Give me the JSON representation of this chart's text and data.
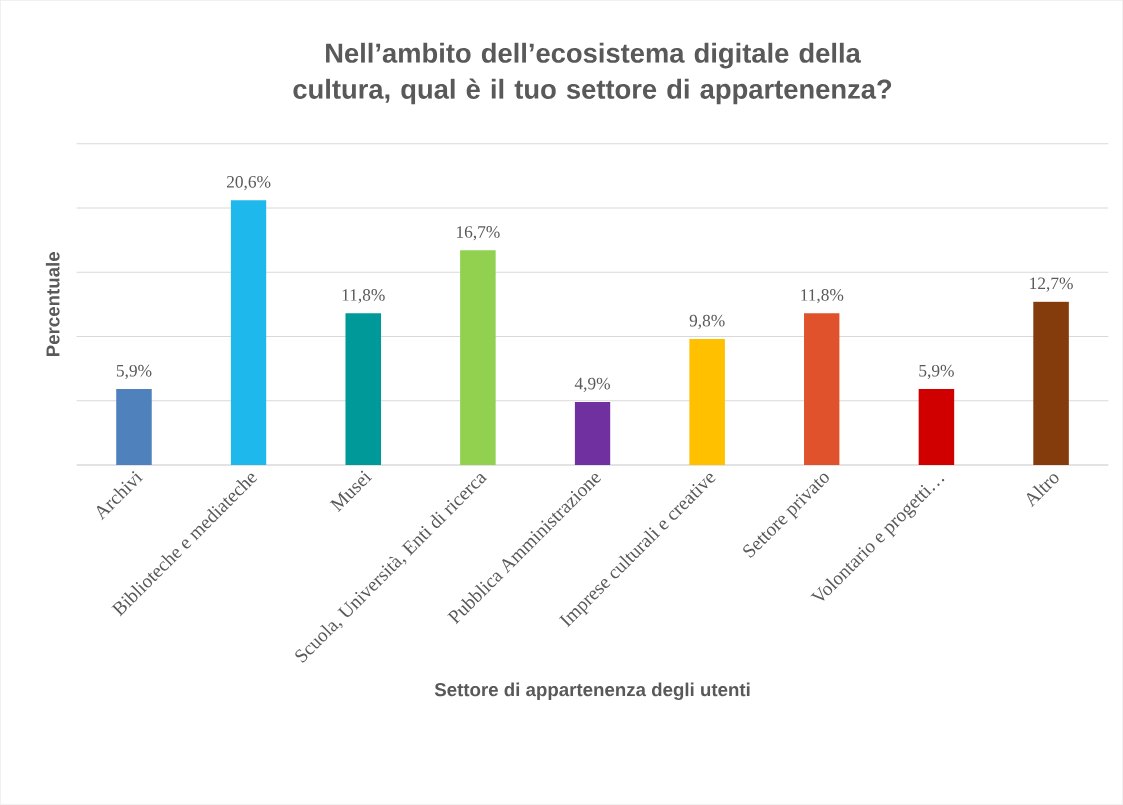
{
  "chart_data": {
    "type": "bar",
    "title": "Nell’ambito dell’ecosistema digitale della cultura, qual è il tuo settore di appartenenza?",
    "xlabel": "Settore di appartenenza degli utenti",
    "ylabel": "Percentuale",
    "categories": [
      "Archivi",
      "Biblioteche e mediateche",
      "Musei",
      "Scuola, Università, Enti di ricerca",
      "Pubblica Amministrazione",
      "Imprese culturali e creative",
      "Settore privato",
      "Volontario e progetti…",
      "Altro"
    ],
    "values": [
      5.9,
      20.6,
      11.8,
      16.7,
      4.9,
      9.8,
      11.8,
      5.9,
      12.7
    ],
    "value_labels": [
      "5,9%",
      "20,6%",
      "11,8%",
      "16,7%",
      "4,9%",
      "9,8%",
      "11,8%",
      "5,9%",
      "12,7%"
    ],
    "colors": [
      "#4f81bd",
      "#1fb8ec",
      "#009999",
      "#92d050",
      "#7030a0",
      "#ffc000",
      "#e0522c",
      "#d00000",
      "#843c0c"
    ],
    "ylim": [
      0,
      25
    ],
    "yticks": [
      0,
      {
        "value": 5,
        "label": null
      },
      {
        "value": 10,
        "label": null
      },
      {
        "value": 15,
        "label": null
      },
      {
        "value": 20,
        "label": null
      },
      {
        "value": 25,
        "label": null
      }
    ],
    "grid": "y",
    "tick_labels": "x"
  }
}
